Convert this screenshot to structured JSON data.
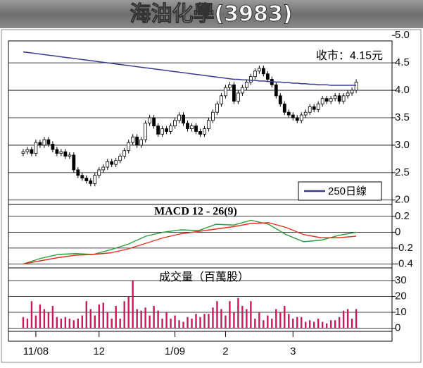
{
  "header": {
    "title": "海油化學(3983)"
  },
  "chart_data": [
    {
      "type": "candlestick",
      "annotation": "收市：4.15元",
      "open": [
        2.85,
        2.88,
        2.92,
        2.85,
        3.05,
        3.0,
        3.1,
        3.02,
        2.92,
        2.85,
        2.88,
        2.8,
        2.82,
        2.55,
        2.45,
        2.4,
        2.35,
        2.3,
        2.45,
        2.55,
        2.6,
        2.7,
        2.65,
        2.72,
        2.8,
        2.9,
        3.05,
        3.15,
        3.0,
        3.1,
        3.4,
        3.5,
        3.35,
        3.2,
        3.3,
        3.25,
        3.35,
        3.45,
        3.55,
        3.4,
        3.3,
        3.35,
        3.25,
        3.2,
        3.3,
        3.45,
        3.6,
        3.75,
        3.9,
        4.05,
        4.1,
        3.8,
        3.95,
        4.05,
        4.15,
        4.25,
        4.35,
        4.4,
        4.3,
        4.2,
        4.1,
        3.9,
        3.75,
        3.6,
        3.55,
        3.5,
        3.45,
        3.55,
        3.6,
        3.7,
        3.65,
        3.75,
        3.85,
        3.8,
        3.85,
        3.9,
        3.8,
        3.9,
        3.95,
        4.0
      ],
      "high": [
        2.93,
        2.97,
        2.97,
        3.1,
        3.1,
        3.15,
        3.15,
        3.07,
        2.97,
        2.93,
        2.93,
        2.87,
        2.87,
        2.6,
        2.5,
        2.45,
        2.4,
        2.5,
        2.6,
        2.65,
        2.75,
        2.75,
        2.77,
        2.85,
        2.95,
        3.1,
        3.2,
        3.2,
        3.15,
        3.45,
        3.55,
        3.55,
        3.4,
        3.35,
        3.35,
        3.4,
        3.5,
        3.6,
        3.6,
        3.45,
        3.4,
        3.4,
        3.3,
        3.35,
        3.5,
        3.65,
        3.8,
        3.95,
        4.1,
        4.15,
        4.15,
        4.0,
        4.1,
        4.2,
        4.3,
        4.4,
        4.45,
        4.45,
        4.35,
        4.25,
        4.15,
        3.95,
        3.8,
        3.65,
        3.6,
        3.55,
        3.6,
        3.65,
        3.75,
        3.75,
        3.8,
        3.9,
        3.9,
        3.9,
        3.95,
        3.95,
        3.95,
        4.0,
        4.05,
        4.2
      ],
      "low": [
        2.8,
        2.83,
        2.8,
        2.8,
        2.95,
        2.95,
        2.97,
        2.87,
        2.8,
        2.8,
        2.75,
        2.75,
        2.5,
        2.4,
        2.35,
        2.3,
        2.25,
        2.25,
        2.4,
        2.5,
        2.55,
        2.6,
        2.6,
        2.67,
        2.75,
        2.85,
        3.0,
        2.95,
        2.95,
        3.05,
        3.35,
        3.3,
        3.15,
        3.15,
        3.2,
        3.2,
        3.3,
        3.4,
        3.35,
        3.25,
        3.25,
        3.2,
        3.15,
        3.15,
        3.25,
        3.4,
        3.55,
        3.7,
        3.85,
        4.0,
        3.75,
        3.75,
        3.9,
        4.0,
        4.1,
        4.2,
        4.3,
        4.25,
        4.15,
        4.05,
        3.85,
        3.7,
        3.55,
        3.5,
        3.45,
        3.4,
        3.4,
        3.5,
        3.55,
        3.6,
        3.6,
        3.7,
        3.75,
        3.75,
        3.8,
        3.75,
        3.75,
        3.85,
        3.9,
        3.95
      ],
      "close": [
        2.88,
        2.92,
        2.85,
        3.05,
        3.0,
        3.1,
        3.02,
        2.92,
        2.85,
        2.88,
        2.8,
        2.82,
        2.55,
        2.45,
        2.4,
        2.35,
        2.3,
        2.45,
        2.55,
        2.6,
        2.7,
        2.65,
        2.72,
        2.8,
        2.9,
        3.05,
        3.15,
        3.0,
        3.1,
        3.4,
        3.5,
        3.35,
        3.2,
        3.3,
        3.25,
        3.35,
        3.45,
        3.55,
        3.4,
        3.3,
        3.35,
        3.25,
        3.2,
        3.3,
        3.45,
        3.6,
        3.75,
        3.9,
        4.05,
        4.1,
        3.8,
        3.95,
        4.05,
        4.15,
        4.25,
        4.35,
        4.4,
        4.3,
        4.2,
        4.1,
        3.9,
        3.75,
        3.6,
        3.55,
        3.5,
        3.45,
        3.55,
        3.6,
        3.7,
        3.65,
        3.75,
        3.85,
        3.8,
        3.85,
        3.9,
        3.8,
        3.9,
        3.95,
        4.0,
        4.15
      ],
      "series": [
        {
          "name": "250日線",
          "color": "#3b3a8f",
          "values": [
            4.7,
            4.69,
            4.68,
            4.67,
            4.66,
            4.65,
            4.64,
            4.63,
            4.62,
            4.61,
            4.6,
            4.59,
            4.58,
            4.57,
            4.56,
            4.55,
            4.54,
            4.53,
            4.52,
            4.51,
            4.5,
            4.49,
            4.48,
            4.47,
            4.46,
            4.45,
            4.44,
            4.43,
            4.42,
            4.41,
            4.4,
            4.39,
            4.38,
            4.37,
            4.36,
            4.35,
            4.34,
            4.33,
            4.32,
            4.31,
            4.3,
            4.29,
            4.28,
            4.27,
            4.26,
            4.25,
            4.24,
            4.23,
            4.22,
            4.21,
            4.2,
            4.2,
            4.19,
            4.19,
            4.18,
            4.18,
            4.17,
            4.17,
            4.16,
            4.16,
            4.15,
            4.15,
            4.14,
            4.14,
            4.13,
            4.13,
            4.12,
            4.12,
            4.11,
            4.11,
            4.1,
            4.1,
            4.1,
            4.09,
            4.09,
            4.09,
            4.09,
            4.09,
            4.09,
            4.09
          ]
        }
      ],
      "ylim": [
        1.92,
        4.9
      ],
      "yticks": [
        {
          "value": 2,
          "label": "2.0"
        },
        2.5,
        {
          "value": 3,
          "label": "3.0"
        },
        3.5,
        {
          "value": 4,
          "label": "4.0"
        },
        4.5,
        {
          "value": 5,
          "label": "5.0"
        }
      ],
      "xlim": [
        -3.5,
        87.5
      ],
      "xticks": [
        {
          "value": 3,
          "label": "11/08"
        },
        {
          "value": 18,
          "label": "12"
        },
        {
          "value": 36,
          "label": "1/09"
        },
        {
          "value": 48,
          "label": "2"
        },
        {
          "value": 64,
          "label": "3"
        }
      ],
      "grid": true
    },
    {
      "type": "line",
      "title": "MACD 12 - 26(9)",
      "series": [
        {
          "color": "#2e9a3c",
          "values": [
            -0.4,
            -0.33,
            -0.28,
            -0.27,
            -0.28,
            -0.22,
            -0.15,
            -0.05,
            0.0,
            0.03,
            0.02,
            0.1,
            0.09,
            0.15,
            0.1,
            -0.03,
            -0.12,
            -0.1,
            -0.04,
            0.0
          ]
        },
        {
          "color": "#e0341f",
          "values": [
            -0.4,
            -0.36,
            -0.32,
            -0.29,
            -0.28,
            -0.26,
            -0.21,
            -0.14,
            -0.07,
            -0.02,
            0.01,
            0.04,
            0.07,
            0.11,
            0.12,
            0.06,
            -0.03,
            -0.07,
            -0.07,
            -0.05
          ]
        }
      ],
      "ylim": [
        -0.45,
        0.35
      ],
      "yticks": [
        -0.4,
        -0.2,
        0,
        0.2
      ],
      "grid": true
    },
    {
      "type": "bar",
      "title": "成交量（百萬股）",
      "color": "#c8195a",
      "values": [
        7,
        6,
        17,
        8,
        15,
        12,
        10,
        14,
        7,
        6,
        7,
        6,
        5,
        6,
        8,
        17,
        12,
        8,
        15,
        16,
        10,
        6,
        14,
        6,
        17,
        20,
        30,
        12,
        11,
        13,
        8,
        14,
        11,
        6,
        10,
        6,
        8,
        5,
        4,
        7,
        6,
        9,
        7,
        9,
        9,
        13,
        17,
        12,
        8,
        17,
        10,
        19,
        14,
        12,
        17,
        6,
        10,
        5,
        8,
        6,
        12,
        10,
        14,
        9,
        6,
        7,
        7,
        4,
        5,
        4,
        6,
        4,
        3,
        5,
        5,
        7,
        11,
        12,
        6,
        12
      ],
      "ylim": [
        -2,
        38
      ],
      "yticks": [
        0,
        10,
        20,
        30
      ],
      "grid": true
    }
  ]
}
